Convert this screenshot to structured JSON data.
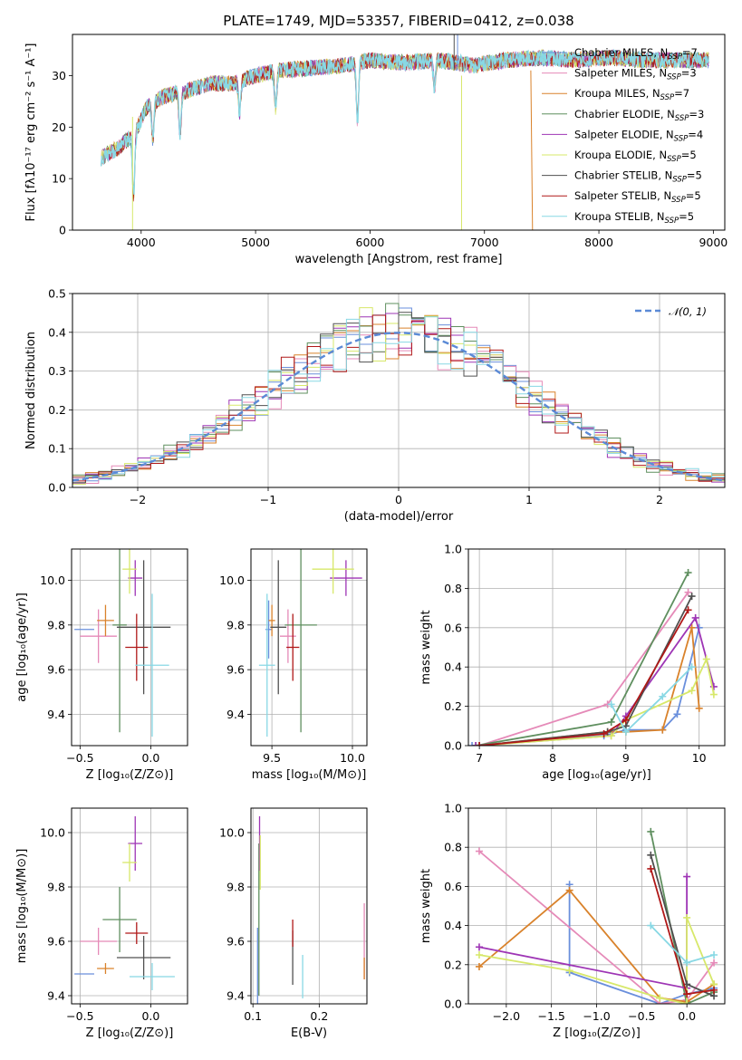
{
  "colors": {
    "miles_chabrier": "#6a8fdc",
    "miles_salpeter": "#e58ab8",
    "miles_kroupa": "#d9822b",
    "elodie_chabrier": "#5f8f5f",
    "elodie_salpeter": "#9e35b5",
    "elodie_kroupa": "#d7e86a",
    "stelib_chabrier": "#505050",
    "stelib_salpeter": "#b01818",
    "stelib_kroupa": "#88d8e4"
  },
  "chart_data": [
    {
      "id": "spectrum",
      "type": "line",
      "title": "PLATE=1749, MJD=53357, FIBERID=0412, z=0.038",
      "xlabel": "wavelength [Angstrom, rest frame]",
      "ylabel": "Flux [fλ10⁻¹⁷ erg cm⁻² s⁻¹ A⁻¹]",
      "xlim": [
        3400,
        9100
      ],
      "ylim": [
        0,
        38
      ],
      "xticks": [
        4000,
        5000,
        6000,
        7000,
        8000,
        9000
      ],
      "yticks": [
        0,
        10,
        20,
        30
      ],
      "continuum_x": [
        3650,
        3800,
        3950,
        4050,
        4200,
        4400,
        4600,
        4800,
        5000,
        5200,
        5500,
        5800,
        6000,
        6300,
        6600,
        6900,
        7200,
        7500,
        7800,
        8100,
        8400,
        8700,
        8950
      ],
      "continuum_y": [
        14,
        16,
        19,
        24,
        26,
        27,
        28.5,
        28.5,
        30,
        31,
        31.5,
        32,
        33,
        32.5,
        33,
        32,
        33,
        33.5,
        33,
        33.5,
        33,
        33,
        33
      ],
      "absorption_lines": [
        {
          "x": 3934,
          "depth": 12
        },
        {
          "x": 4102,
          "depth": 7
        },
        {
          "x": 4340,
          "depth": 8
        },
        {
          "x": 4861,
          "depth": 6
        },
        {
          "x": 5175,
          "depth": 7
        },
        {
          "x": 5890,
          "depth": 11
        },
        {
          "x": 6563,
          "depth": 5
        }
      ],
      "legend": [
        "Chabrier MILES, N_SSP=7",
        "Salpeter MILES, N_SSP=3",
        "Kroupa MILES, N_SSP=7",
        "Chabrier ELODIE, N_SSP=3",
        "Salpeter ELODIE, N_SSP=4",
        "Kroupa ELODIE, N_SSP=5",
        "Chabrier STELIB, N_SSP=5",
        "Salpeter STELIB, N_SSP=5",
        "Kroupa STELIB, N_SSP=5"
      ],
      "legend_placement": "upper right",
      "grid": false
    },
    {
      "id": "residuals",
      "type": "histogram",
      "xlabel": "(data-model)/error",
      "ylabel": "Normed distribution",
      "xlim": [
        -2.5,
        2.5
      ],
      "ylim": [
        0,
        0.5
      ],
      "xticks": [
        -2,
        -1,
        0,
        1,
        2
      ],
      "yticks": [
        0.0,
        0.1,
        0.2,
        0.3,
        0.4,
        0.5
      ],
      "bin_width": 0.1,
      "reference_curve": {
        "label": "𝒩(0, 1)",
        "mean": 0,
        "sigma": 1
      },
      "legend_placement": "upper right",
      "grid": true
    },
    {
      "id": "age_vs_Z",
      "type": "scatter",
      "xlabel": "Z [log₁₀(Z/Z⊙)]",
      "ylabel": "age  [log₁₀(age/yr)]",
      "xlim": [
        -0.56,
        0.26
      ],
      "ylim": [
        9.26,
        10.14
      ],
      "xticks": [
        -0.5,
        0.0
      ],
      "yticks": [
        9.4,
        9.6,
        9.8,
        10.0
      ],
      "points": [
        {
          "x": -0.47,
          "y": 9.78,
          "xerr": 0.07,
          "yerr": 0.0
        },
        {
          "x": -0.37,
          "y": 9.75,
          "xerr": 0.13,
          "yerr": 0.12
        },
        {
          "x": -0.32,
          "y": 9.82,
          "xerr": 0.06,
          "yerr": 0.07
        },
        {
          "x": -0.22,
          "y": 9.8,
          "xerr": 0.05,
          "yerr": 0.48
        },
        {
          "x": -0.11,
          "y": 10.01,
          "xerr": 0.05,
          "yerr": 0.08
        },
        {
          "x": -0.15,
          "y": 10.05,
          "xerr": 0.05,
          "yerr": 0.11
        },
        {
          "x": -0.05,
          "y": 9.79,
          "xerr": 0.19,
          "yerr": 0.3
        },
        {
          "x": -0.1,
          "y": 9.7,
          "xerr": 0.08,
          "yerr": 0.15
        },
        {
          "x": 0.01,
          "y": 9.62,
          "xerr": 0.12,
          "yerr": 0.32
        }
      ]
    },
    {
      "id": "age_vs_mass",
      "type": "scatter",
      "xlabel": "mass [log₁₀(M/M⊙)]",
      "ylabel": "",
      "xlim": [
        9.37,
        10.09
      ],
      "ylim": [
        9.26,
        10.14
      ],
      "xticks": [
        9.5,
        10.0
      ],
      "yticks": [
        9.4,
        9.6,
        9.8,
        10.0
      ],
      "points": [
        {
          "x": 9.48,
          "y": 9.78,
          "xerr": 0.02,
          "yerr": 0.13
        },
        {
          "x": 9.6,
          "y": 9.75,
          "xerr": 0.05,
          "yerr": 0.12
        },
        {
          "x": 9.5,
          "y": 9.82,
          "xerr": 0.02,
          "yerr": 0.07
        },
        {
          "x": 9.68,
          "y": 9.8,
          "xerr": 0.1,
          "yerr": 0.48
        },
        {
          "x": 9.96,
          "y": 10.01,
          "xerr": 0.1,
          "yerr": 0.08
        },
        {
          "x": 9.88,
          "y": 10.05,
          "xerr": 0.13,
          "yerr": 0.11
        },
        {
          "x": 9.54,
          "y": 9.79,
          "xerr": 0.05,
          "yerr": 0.3
        },
        {
          "x": 9.63,
          "y": 9.7,
          "xerr": 0.04,
          "yerr": 0.15
        },
        {
          "x": 9.47,
          "y": 9.62,
          "xerr": 0.05,
          "yerr": 0.32
        }
      ]
    },
    {
      "id": "massweight_vs_age",
      "type": "line",
      "xlabel": "age  [log₁₀(age/yr)]",
      "ylabel": "mass weight",
      "xlim": [
        6.85,
        10.35
      ],
      "ylim": [
        0,
        1
      ],
      "xticks": [
        7,
        8,
        9,
        10
      ],
      "yticks": [
        0.0,
        0.2,
        0.4,
        0.6,
        0.8,
        1.0
      ],
      "series": [
        {
          "x": [
            6.9,
            8.7,
            9.0,
            9.5,
            9.7,
            10.0
          ],
          "y": [
            0.0,
            0.05,
            0.08,
            0.08,
            0.16,
            0.6
          ]
        },
        {
          "x": [
            7.0,
            8.75,
            9.85
          ],
          "y": [
            0.0,
            0.21,
            0.78
          ]
        },
        {
          "x": [
            7.0,
            8.75,
            9.0,
            9.5,
            9.9,
            10.0
          ],
          "y": [
            0.0,
            0.07,
            0.07,
            0.08,
            0.6,
            0.19
          ]
        },
        {
          "x": [
            6.95,
            8.8,
            9.85
          ],
          "y": [
            0.0,
            0.12,
            0.88
          ]
        },
        {
          "x": [
            6.95,
            8.8,
            9.0,
            9.95,
            10.2
          ],
          "y": [
            0.0,
            0.05,
            0.15,
            0.65,
            0.3
          ]
        },
        {
          "x": [
            7.0,
            8.8,
            9.0,
            9.9,
            10.1,
            10.2
          ],
          "y": [
            0.0,
            0.05,
            0.13,
            0.28,
            0.44,
            0.26
          ]
        },
        {
          "x": [
            7.0,
            8.75,
            9.0,
            9.9
          ],
          "y": [
            0.0,
            0.07,
            0.1,
            0.76
          ]
        },
        {
          "x": [
            7.0,
            8.7,
            9.0,
            9.85
          ],
          "y": [
            0.0,
            0.06,
            0.13,
            0.69
          ]
        },
        {
          "x": [
            8.8,
            9.0,
            9.5,
            9.9
          ],
          "y": [
            0.21,
            0.07,
            0.25,
            0.4
          ]
        }
      ]
    },
    {
      "id": "mass_vs_Z",
      "type": "scatter",
      "xlabel": "Z [log₁₀(Z/Z⊙)]",
      "ylabel": "mass [log₁₀(M/M⊙)]",
      "xlim": [
        -0.56,
        0.26
      ],
      "ylim": [
        9.37,
        10.09
      ],
      "xticks": [
        -0.5,
        0.0
      ],
      "yticks": [
        9.4,
        9.6,
        9.8,
        10.0
      ],
      "points": [
        {
          "x": -0.47,
          "y": 9.48,
          "xerr": 0.07,
          "yerr": 0.0
        },
        {
          "x": -0.37,
          "y": 9.6,
          "xerr": 0.13,
          "yerr": 0.05
        },
        {
          "x": -0.32,
          "y": 9.5,
          "xerr": 0.06,
          "yerr": 0.02
        },
        {
          "x": -0.22,
          "y": 9.68,
          "xerr": 0.12,
          "yerr": 0.12
        },
        {
          "x": -0.11,
          "y": 9.96,
          "xerr": 0.05,
          "yerr": 0.1
        },
        {
          "x": -0.15,
          "y": 9.89,
          "xerr": 0.05,
          "yerr": 0.07
        },
        {
          "x": -0.05,
          "y": 9.54,
          "xerr": 0.19,
          "yerr": 0.08
        },
        {
          "x": -0.1,
          "y": 9.63,
          "xerr": 0.08,
          "yerr": 0.04
        },
        {
          "x": 0.01,
          "y": 9.47,
          "xerr": 0.16,
          "yerr": 0.05
        }
      ]
    },
    {
      "id": "mass_vs_ebv",
      "type": "scatter",
      "xlabel": "E(B-V)",
      "ylabel": "",
      "xlim": [
        0.097,
        0.272
      ],
      "ylim": [
        9.37,
        10.09
      ],
      "xticks": [
        0.1,
        0.2
      ],
      "yticks": [
        9.4,
        9.6,
        9.8,
        10.0
      ],
      "points": [
        {
          "x": 0.107,
          "y": 9.48,
          "xerr": 0,
          "yerr": 0.17
        },
        {
          "x": 0.268,
          "y": 9.6,
          "xerr": 0,
          "yerr": 0.14
        },
        {
          "x": 0.268,
          "y": 9.5,
          "xerr": 0,
          "yerr": 0.04
        },
        {
          "x": 0.109,
          "y": 9.68,
          "xerr": 0,
          "yerr": 0.28
        },
        {
          "x": 0.11,
          "y": 9.96,
          "xerr": 0,
          "yerr": 0.1
        },
        {
          "x": 0.111,
          "y": 9.89,
          "xerr": 0,
          "yerr": 0.1
        },
        {
          "x": 0.16,
          "y": 9.54,
          "xerr": 0,
          "yerr": 0.1
        },
        {
          "x": 0.16,
          "y": 9.63,
          "xerr": 0,
          "yerr": 0.05
        },
        {
          "x": 0.175,
          "y": 9.47,
          "xerr": 0,
          "yerr": 0.08
        }
      ]
    },
    {
      "id": "massweight_vs_Z",
      "type": "line",
      "xlabel": "Z [log₁₀(Z/Z⊙)]",
      "ylabel": "mass weight",
      "xlim": [
        -2.42,
        0.42
      ],
      "ylim": [
        0,
        1
      ],
      "xticks": [
        -2.0,
        -1.5,
        -1.0,
        -0.5,
        0.0
      ],
      "yticks": [
        0.0,
        0.2,
        0.4,
        0.6,
        0.8,
        1.0
      ],
      "series": [
        {
          "x": [
            -1.3,
            -1.3,
            -0.3,
            0.0,
            0.3
          ],
          "y": [
            0.61,
            0.16,
            0.0,
            0.05,
            0.08
          ]
        },
        {
          "x": [
            -2.3,
            -0.3,
            0.0,
            0.3
          ],
          "y": [
            0.78,
            0.0,
            0.02,
            0.21
          ]
        },
        {
          "x": [
            -2.3,
            -1.3,
            -0.3,
            0.0,
            0.3
          ],
          "y": [
            0.19,
            0.58,
            0.03,
            0.01,
            0.1
          ]
        },
        {
          "x": [
            -0.4,
            0.0,
            0.3
          ],
          "y": [
            0.88,
            0.0,
            0.06
          ]
        },
        {
          "x": [
            -2.3,
            0.0,
            0.0
          ],
          "y": [
            0.29,
            0.08,
            0.65
          ]
        },
        {
          "x": [
            -2.3,
            -1.3,
            -0.3,
            0.0,
            0.0,
            0.3
          ],
          "y": [
            0.25,
            0.17,
            0.03,
            0.0,
            0.44,
            0.1
          ]
        },
        {
          "x": [
            -0.4,
            0.0,
            0.3
          ],
          "y": [
            0.76,
            0.1,
            0.04
          ]
        },
        {
          "x": [
            -0.4,
            0.0,
            0.3
          ],
          "y": [
            0.69,
            0.05,
            0.07
          ]
        },
        {
          "x": [
            -0.4,
            0.0,
            0.3
          ],
          "y": [
            0.4,
            0.21,
            0.25
          ]
        }
      ]
    }
  ]
}
